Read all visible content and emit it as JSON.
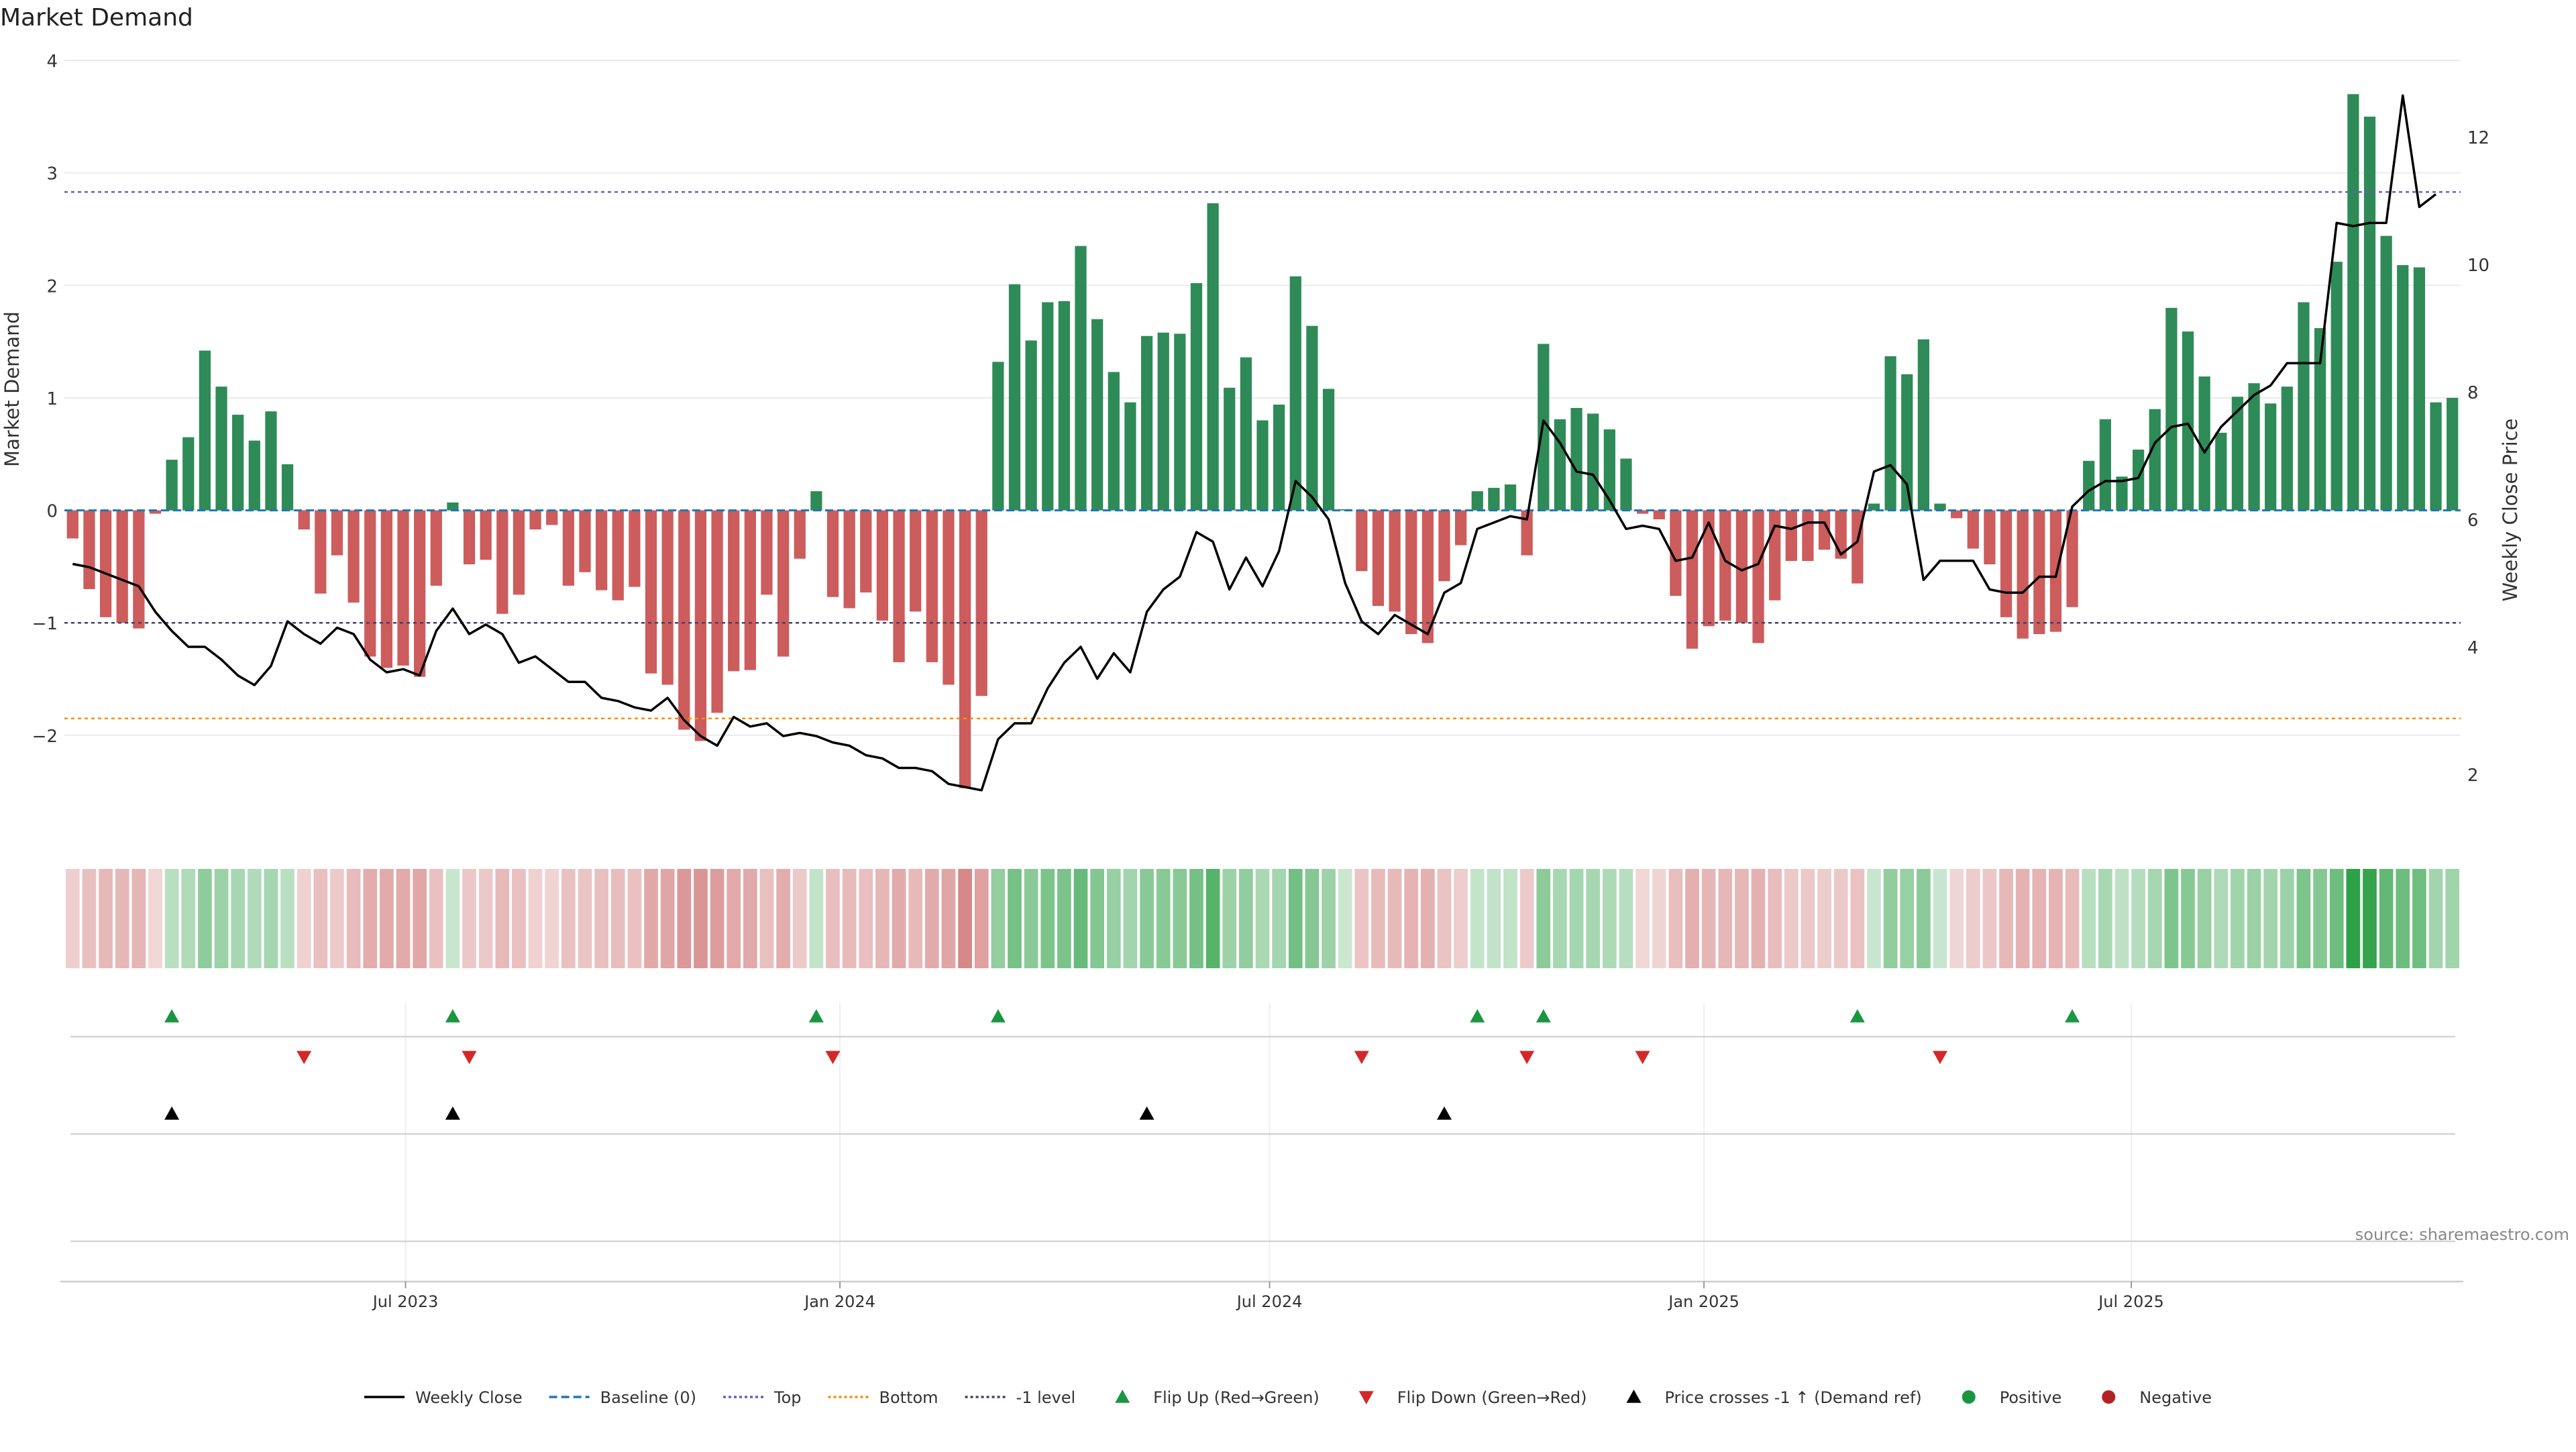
{
  "title": "Market Demand",
  "source": "source: sharemaestro.com",
  "colors": {
    "positive": "#2e8b57",
    "negative": "#cd5c5c",
    "close_line": "#000000",
    "baseline": "#1f77b4",
    "top_level": "#6a5acd",
    "bottom_level": "#ff8c00",
    "neg1_level": "#444466",
    "flip_up": "#1a9641",
    "flip_down": "#d62728",
    "price_cross": "#000000",
    "dot_positive": "#1a9641",
    "dot_negative": "#b22222"
  },
  "legend": [
    {
      "label": "Weekly Close",
      "kind": "line",
      "color": "#000000",
      "dash": ""
    },
    {
      "label": "Baseline (0)",
      "kind": "line",
      "color": "#1f77b4",
      "dash": "12,6"
    },
    {
      "label": "Top",
      "kind": "line",
      "color": "#6a5acd",
      "dash": "4,4"
    },
    {
      "label": "Bottom",
      "kind": "line",
      "color": "#ff8c00",
      "dash": "4,4"
    },
    {
      "label": "-1 level",
      "kind": "line",
      "color": "#444466",
      "dash": "4,4"
    },
    {
      "label": "Flip Up (Red→Green)",
      "kind": "tri-up",
      "color": "#1a9641"
    },
    {
      "label": "Flip Down (Green→Red)",
      "kind": "tri-down",
      "color": "#d62728"
    },
    {
      "label": "Price crosses -1 ↑ (Demand ref)",
      "kind": "tri-up",
      "color": "#000000"
    },
    {
      "label": "Positive",
      "kind": "dot",
      "color": "#1a9641"
    },
    {
      "label": "Negative",
      "kind": "dot",
      "color": "#b22222"
    }
  ],
  "chart_data": {
    "type": "bar",
    "title": "Market Demand",
    "ylabel": "Market Demand",
    "y2label": "Weekly Close Price",
    "ylim": [
      -2.8,
      4.0
    ],
    "y2lim": [
      1.2,
      13.2
    ],
    "yticks": [
      4,
      3,
      2,
      1,
      0,
      -1,
      -2
    ],
    "yticklabels": [
      "4",
      "3",
      "2",
      "1",
      "0",
      "−1",
      "−2"
    ],
    "y2ticks": [
      12,
      10,
      8,
      6,
      4,
      2
    ],
    "y2ticklabels": [
      "12",
      "10",
      "8",
      "6",
      "4",
      "2"
    ],
    "x_start": "2023-02-10",
    "week_count": 144,
    "xticks": [
      "2023-07-01",
      "2024-01-01",
      "2024-07-01",
      "2025-01-01",
      "2025-07-01"
    ],
    "xticklabels": [
      "Jul 2023",
      "Jan 2024",
      "Jul 2024",
      "Jan 2025",
      "Jul 2025"
    ],
    "reference_lines": {
      "baseline": 0,
      "top": 2.83,
      "bottom": -1.85,
      "neg1": -1.0
    },
    "series": [
      {
        "name": "Market Demand",
        "type": "bar",
        "values": [
          -0.25,
          -0.7,
          -0.95,
          -1.0,
          -1.05,
          -0.03,
          0.45,
          0.65,
          1.42,
          1.1,
          0.85,
          0.62,
          0.88,
          0.41,
          -0.17,
          -0.74,
          -0.4,
          -0.82,
          -1.3,
          -1.4,
          -1.38,
          -1.48,
          -0.67,
          0.07,
          -0.48,
          -0.44,
          -0.92,
          -0.75,
          -0.17,
          -0.13,
          -0.67,
          -0.55,
          -0.71,
          -0.8,
          -0.68,
          -1.45,
          -1.55,
          -1.95,
          -2.05,
          -1.8,
          -1.43,
          -1.42,
          -0.75,
          -1.3,
          -0.43,
          0.17,
          -0.77,
          -0.87,
          -0.73,
          -0.98,
          -1.35,
          -0.9,
          -1.35,
          -1.55,
          -2.47,
          -1.65,
          1.32,
          2.01,
          1.51,
          1.85,
          1.86,
          2.35,
          1.7,
          1.23,
          0.96,
          1.55,
          1.58,
          1.57,
          2.02,
          2.73,
          1.09,
          1.36,
          0.8,
          0.94,
          2.08,
          1.64,
          1.08,
          0.01,
          -0.54,
          -0.85,
          -0.9,
          -1.1,
          -1.18,
          -0.63,
          -0.31,
          0.17,
          0.2,
          0.23,
          -0.4,
          1.48,
          0.81,
          0.91,
          0.86,
          0.72,
          0.46,
          -0.03,
          -0.08,
          -0.76,
          -1.23,
          -1.03,
          -0.98,
          -1.0,
          -1.18,
          -0.8,
          -0.45,
          -0.45,
          -0.35,
          -0.43,
          -0.65,
          0.06,
          1.37,
          1.21,
          1.52,
          0.06,
          -0.07,
          -0.34,
          -0.48,
          -0.95,
          -1.14,
          -1.1,
          -1.08,
          -0.86,
          0.44,
          0.81,
          0.3,
          0.54,
          0.9,
          1.8,
          1.59,
          1.19,
          0.69,
          1.01,
          1.13,
          0.95,
          1.1,
          1.85,
          1.62,
          2.21,
          3.7,
          3.5,
          2.44,
          2.18,
          2.16,
          0.96,
          1.0
        ]
      },
      {
        "name": "Weekly Close",
        "type": "line",
        "axis": "y2",
        "values": [
          5.3,
          5.25,
          5.15,
          5.05,
          4.95,
          4.55,
          4.25,
          4.0,
          4.0,
          3.8,
          3.55,
          3.4,
          3.7,
          4.4,
          4.2,
          4.05,
          4.3,
          4.2,
          3.8,
          3.6,
          3.65,
          3.55,
          4.25,
          4.6,
          4.2,
          4.35,
          4.2,
          3.75,
          3.85,
          3.65,
          3.45,
          3.45,
          3.2,
          3.15,
          3.05,
          3.0,
          3.2,
          2.85,
          2.6,
          2.45,
          2.9,
          2.75,
          2.8,
          2.6,
          2.65,
          2.6,
          2.5,
          2.45,
          2.3,
          2.25,
          2.1,
          2.1,
          2.05,
          1.85,
          1.8,
          1.75,
          2.55,
          2.8,
          2.8,
          3.35,
          3.75,
          4.0,
          3.5,
          3.9,
          3.6,
          4.55,
          4.9,
          5.1,
          5.8,
          5.65,
          4.9,
          5.4,
          4.95,
          5.5,
          6.6,
          6.35,
          6.0,
          5.0,
          4.4,
          4.2,
          4.5,
          4.35,
          4.2,
          4.85,
          5.0,
          5.85,
          5.95,
          6.05,
          6.0,
          7.55,
          7.2,
          6.75,
          6.7,
          6.3,
          5.85,
          5.9,
          5.85,
          5.35,
          5.4,
          5.95,
          5.35,
          5.2,
          5.3,
          5.9,
          5.85,
          5.95,
          5.95,
          5.45,
          5.65,
          6.75,
          6.85,
          6.55,
          5.05,
          5.35,
          5.35,
          5.35,
          4.9,
          4.85,
          4.85,
          5.1,
          5.1,
          6.2,
          6.45,
          6.6,
          6.6,
          6.65,
          7.2,
          7.45,
          7.5,
          7.05,
          7.45,
          7.7,
          7.95,
          8.1,
          8.45,
          8.45,
          8.45,
          10.65,
          10.6,
          10.65,
          10.65,
          12.65,
          10.9,
          11.1
        ]
      }
    ],
    "heat_strip_values": "same as Market Demand series",
    "flip_up_weeks": [
      6,
      23,
      45,
      56,
      85,
      89,
      108,
      121
    ],
    "flip_down_weeks": [
      14,
      24,
      46,
      78,
      88,
      95,
      113
    ],
    "price_cross_weeks": [
      6,
      23,
      65,
      83
    ]
  }
}
